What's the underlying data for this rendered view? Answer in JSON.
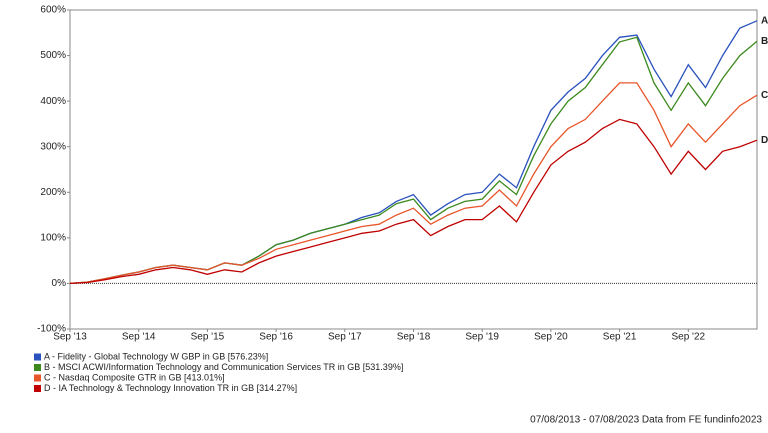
{
  "chart_data": {
    "type": "line",
    "categories": [
      "Sep '13",
      null,
      null,
      null,
      "Sep '14",
      null,
      null,
      null,
      "Sep '15",
      null,
      null,
      null,
      "Sep '16",
      null,
      null,
      null,
      "Sep '17",
      null,
      null,
      null,
      "Sep '18",
      null,
      null,
      null,
      "Sep '19",
      null,
      null,
      null,
      "Sep '20",
      null,
      null,
      null,
      "Sep '21",
      null,
      null,
      null,
      "Sep '22",
      null,
      null,
      null,
      null
    ],
    "series": [
      {
        "name": "A - Fidelity - Global Technology W GBP in GB [576.23%]",
        "end_label": "A",
        "color": "#2a52be",
        "values": [
          0,
          3,
          10,
          18,
          25,
          35,
          40,
          35,
          30,
          45,
          40,
          60,
          85,
          95,
          110,
          120,
          130,
          145,
          155,
          180,
          195,
          150,
          175,
          195,
          200,
          240,
          210,
          300,
          380,
          420,
          450,
          500,
          540,
          545,
          470,
          410,
          480,
          430,
          500,
          560,
          576.23
        ]
      },
      {
        "name": "B - MSCI ACWI/Information Technology and Communication Services TR in GB [531.39%]",
        "end_label": "B",
        "color": "#3c8a1e",
        "values": [
          0,
          3,
          10,
          18,
          25,
          35,
          40,
          35,
          30,
          45,
          40,
          60,
          85,
          95,
          110,
          120,
          130,
          140,
          150,
          175,
          185,
          140,
          165,
          180,
          185,
          225,
          195,
          280,
          350,
          400,
          430,
          480,
          530,
          540,
          440,
          380,
          440,
          390,
          450,
          500,
          531.39
        ]
      },
      {
        "name": "C - Nasdaq Composite GTR in GB [413.01%]",
        "end_label": "C",
        "color": "#e8552a",
        "values": [
          0,
          3,
          10,
          18,
          25,
          35,
          40,
          35,
          30,
          45,
          40,
          55,
          75,
          85,
          95,
          105,
          115,
          125,
          130,
          150,
          165,
          130,
          150,
          165,
          170,
          205,
          170,
          240,
          300,
          340,
          360,
          400,
          440,
          440,
          380,
          300,
          350,
          310,
          350,
          390,
          413.01
        ]
      },
      {
        "name": "D - IA Technology & Technology Innovation TR in GB [314.27%]",
        "end_label": "D",
        "color": "#c00000",
        "values": [
          0,
          2,
          8,
          15,
          20,
          30,
          35,
          30,
          20,
          30,
          25,
          45,
          60,
          70,
          80,
          90,
          100,
          110,
          115,
          130,
          140,
          105,
          125,
          140,
          140,
          170,
          135,
          200,
          260,
          290,
          310,
          340,
          360,
          350,
          300,
          240,
          290,
          250,
          290,
          300,
          314.27
        ]
      }
    ],
    "ylim": [
      -100,
      600
    ],
    "yticks": [
      {
        "value": -100,
        "label": "-100%"
      },
      {
        "value": 0,
        "label": "0%"
      },
      {
        "value": 100,
        "label": "100%"
      },
      {
        "value": 200,
        "label": "200%"
      },
      {
        "value": 300,
        "label": "300%"
      },
      {
        "value": 400,
        "label": "400%"
      },
      {
        "value": 500,
        "label": "500%"
      },
      {
        "value": 600,
        "label": "600%"
      }
    ],
    "grid": false,
    "footer": "07/08/2013 - 07/08/2023 Data from FE fundinfo2023"
  }
}
